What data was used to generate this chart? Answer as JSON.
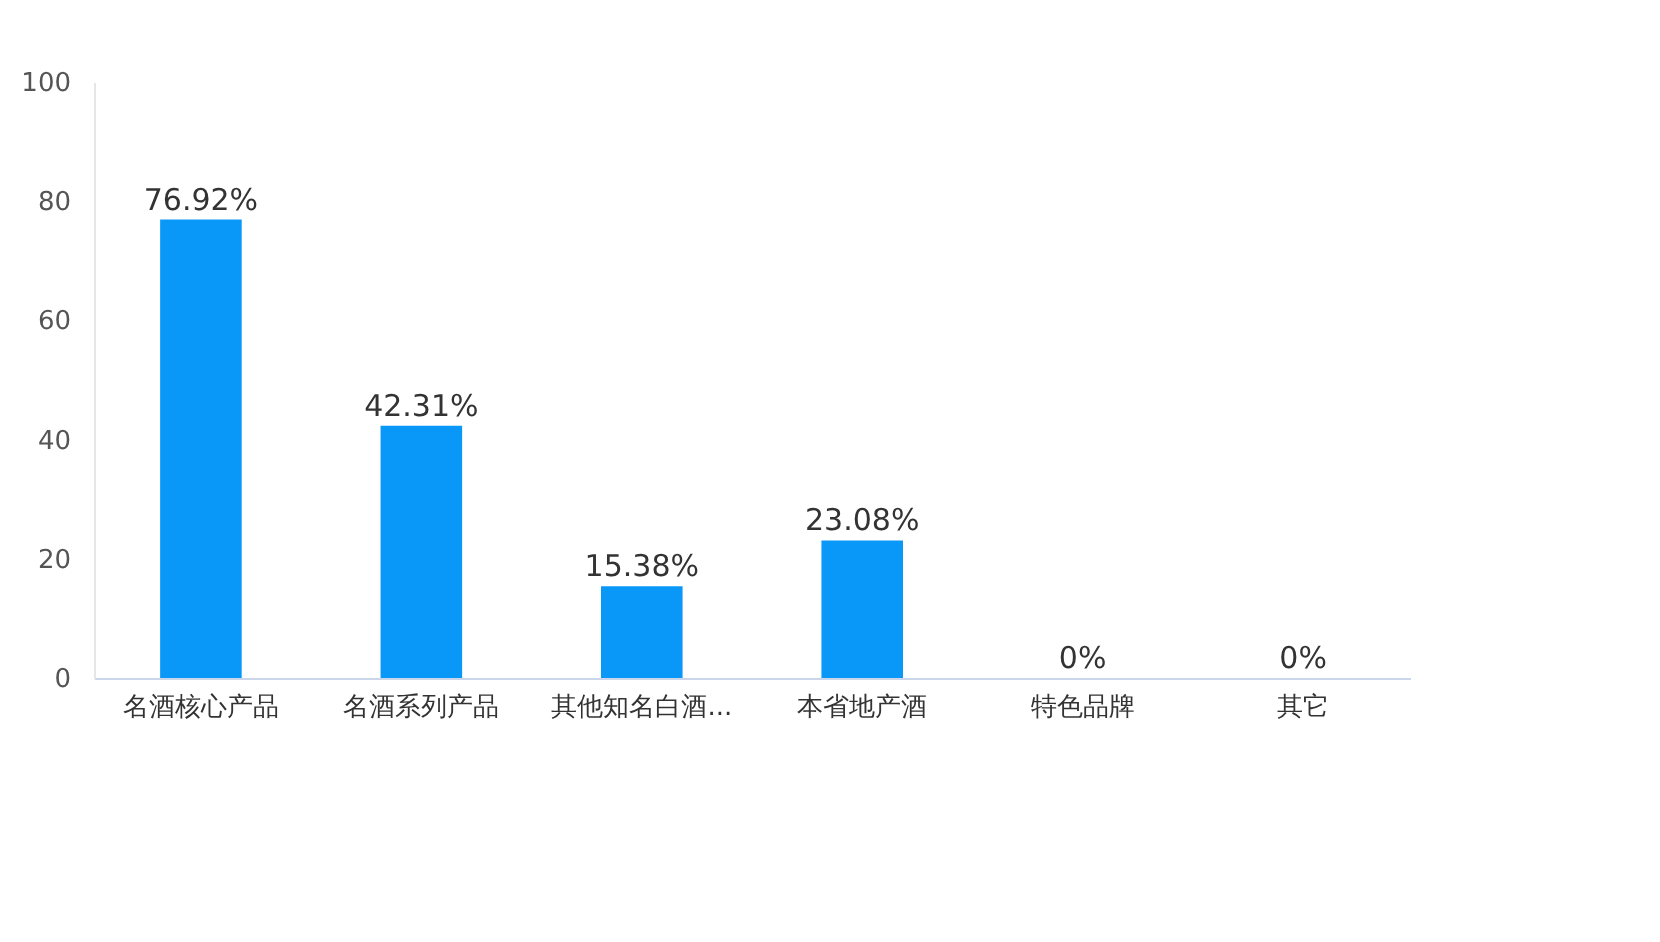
{
  "chart_data": {
    "type": "bar",
    "categories": [
      "名酒核心产品",
      "名酒系列产品",
      "其他知名白酒...",
      "本省地产酒",
      "特色品牌",
      "其它"
    ],
    "values": [
      76.92,
      42.31,
      15.38,
      23.08,
      0,
      0
    ],
    "value_labels": [
      "76.92%",
      "42.31%",
      "15.38%",
      "23.08%",
      "0%",
      "0%"
    ],
    "color": "#0a98f8",
    "ylim": [
      0,
      100
    ],
    "yticks": [
      0,
      20,
      40,
      60,
      80,
      100
    ],
    "grid": false
  }
}
